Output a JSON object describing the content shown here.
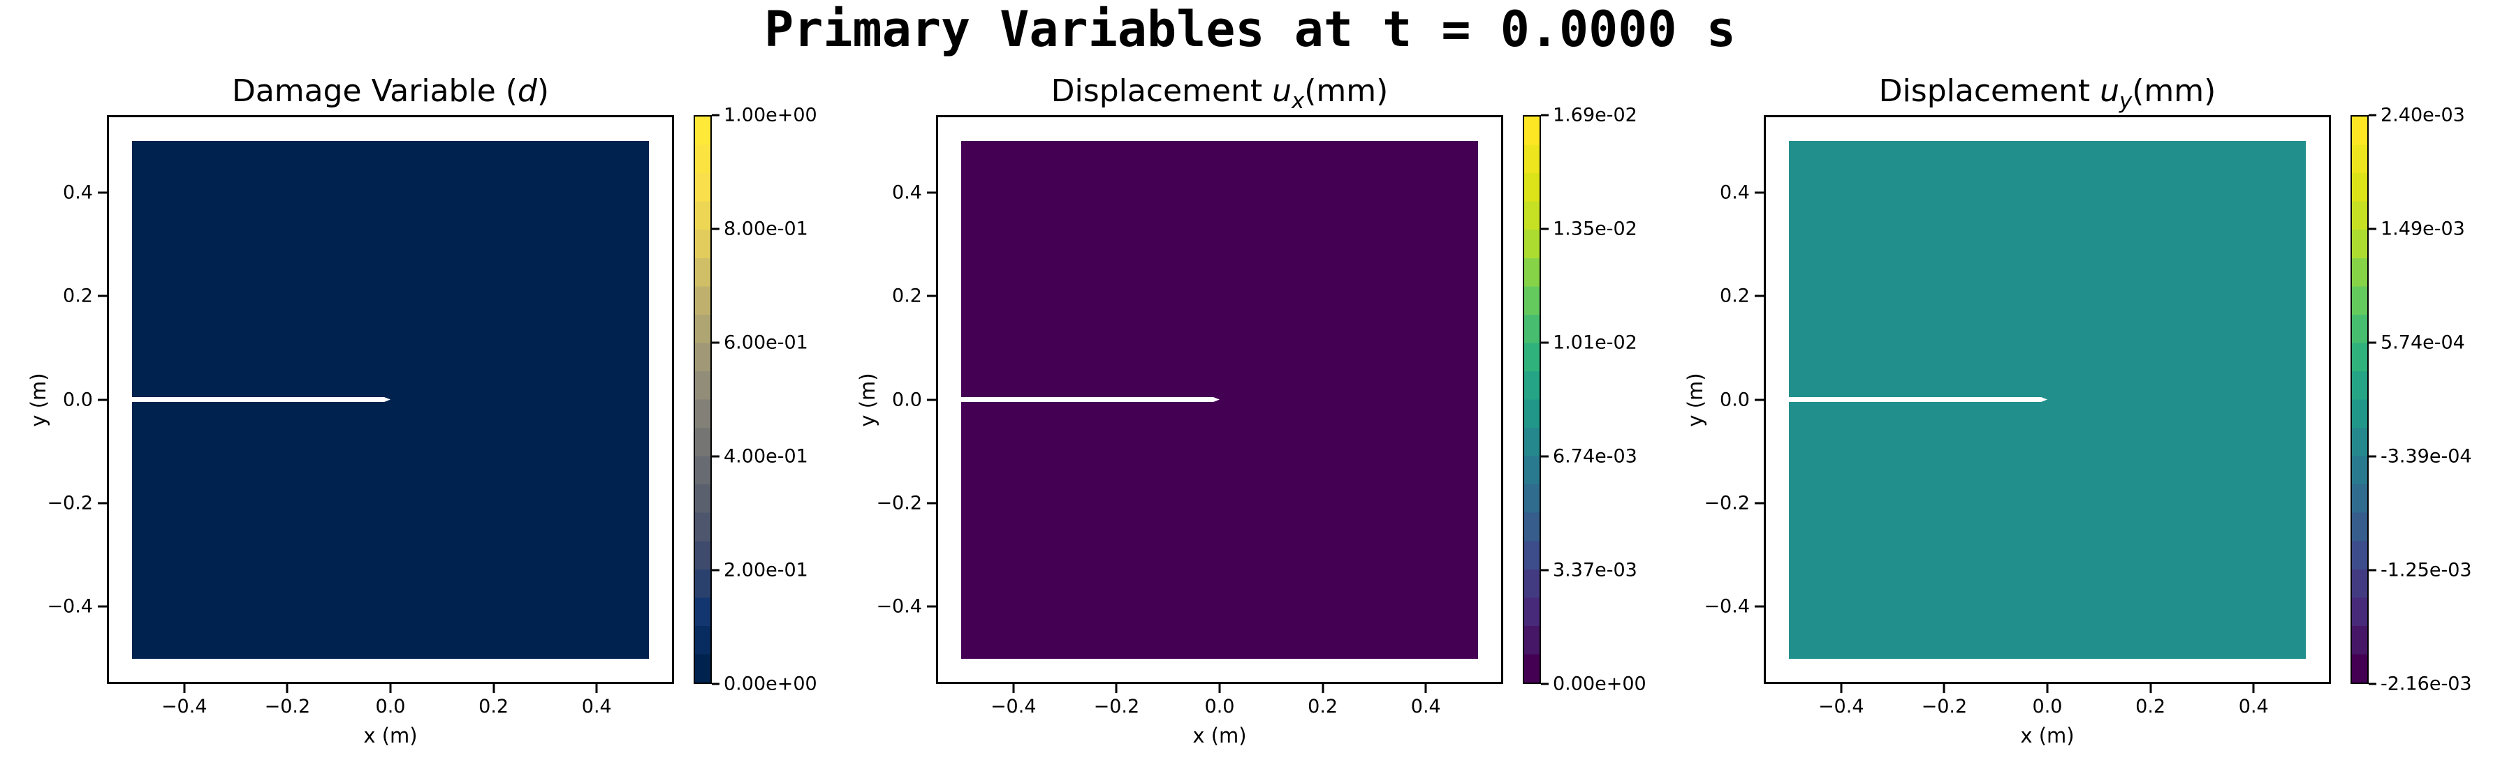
{
  "figure": {
    "suptitle": "Primary Variables at t = 0.0000 s",
    "background": "#ffffff",
    "text_color": "#000000"
  },
  "panels": [
    {
      "title_prefix": "Damage Variable (",
      "title_var": "d",
      "title_sub": "",
      "title_suffix": ")",
      "xlabel": "x (m)",
      "ylabel": "y (m)",
      "xtick_labels": [
        "−0.4",
        "−0.2",
        "0.0",
        "0.2",
        "0.4"
      ],
      "ytick_labels": [
        "0.4",
        "0.2",
        "0.0",
        "−0.2",
        "−0.4"
      ],
      "fill_color": "#00224e",
      "crack_color": "#ffffff",
      "colorbar": {
        "colormap": "cividis",
        "bands": 20,
        "stops": [
          "#00224e",
          "#123570",
          "#3b496c",
          "#575d6d",
          "#707173",
          "#8a8779",
          "#a69d75",
          "#c4b56c",
          "#e4cf5b",
          "#f9e04a",
          "#fee838"
        ],
        "tick_labels": [
          "1.00e+00",
          "8.00e-01",
          "6.00e-01",
          "4.00e-01",
          "2.00e-01",
          "0.00e+00"
        ]
      }
    },
    {
      "title_prefix": "Displacement ",
      "title_var": "u",
      "title_sub": "x",
      "title_suffix": "(mm)",
      "xlabel": "x (m)",
      "ylabel": "y (m)",
      "xtick_labels": [
        "−0.4",
        "−0.2",
        "0.0",
        "0.2",
        "0.4"
      ],
      "ytick_labels": [
        "0.4",
        "0.2",
        "0.0",
        "−0.2",
        "−0.4"
      ],
      "fill_color": "#440154",
      "crack_color": "#ffffff",
      "colorbar": {
        "colormap": "viridis",
        "bands": 20,
        "stops": [
          "#440154",
          "#482878",
          "#3e4989",
          "#31688e",
          "#26828e",
          "#1f9e89",
          "#35b779",
          "#6dcd59",
          "#b4de2c",
          "#dfe318",
          "#fde725"
        ],
        "tick_labels": [
          "1.69e-02",
          "1.35e-02",
          "1.01e-02",
          "6.74e-03",
          "3.37e-03",
          "0.00e+00"
        ]
      }
    },
    {
      "title_prefix": "Displacement ",
      "title_var": "u",
      "title_sub": "y",
      "title_suffix": "(mm)",
      "xlabel": "x (m)",
      "ylabel": "y (m)",
      "xtick_labels": [
        "−0.4",
        "−0.2",
        "0.0",
        "0.2",
        "0.4"
      ],
      "ytick_labels": [
        "0.4",
        "0.2",
        "0.0",
        "−0.2",
        "−0.4"
      ],
      "fill_color": "#21908c",
      "crack_color": "#ffffff",
      "colorbar": {
        "colormap": "viridis",
        "bands": 20,
        "stops": [
          "#440154",
          "#482878",
          "#3e4989",
          "#31688e",
          "#26828e",
          "#1f9e89",
          "#35b779",
          "#6dcd59",
          "#b4de2c",
          "#dfe318",
          "#fde725"
        ],
        "tick_labels": [
          "2.40e-03",
          "1.49e-03",
          "5.74e-04",
          "-3.39e-04",
          "-1.25e-03",
          "-2.16e-03"
        ]
      }
    }
  ],
  "chart_data": [
    {
      "type": "heatmap",
      "title": "Damage Variable (d)",
      "xlabel": "x (m)",
      "ylabel": "y (m)",
      "x_range": [
        -0.5,
        0.5
      ],
      "y_range": [
        -0.5,
        0.5
      ],
      "axes_xlim": [
        -0.55,
        0.55
      ],
      "axes_ylim": [
        -0.55,
        0.55
      ],
      "xticks": [
        -0.4,
        -0.2,
        0.0,
        0.2,
        0.4
      ],
      "yticks": [
        -0.4,
        -0.2,
        0.0,
        0.2,
        0.4
      ],
      "field": "d",
      "field_value_uniform": 0.0,
      "colormap": "cividis",
      "clim": [
        0.0,
        1.0
      ],
      "colorbar_ticks": [
        0.0,
        0.2,
        0.4,
        0.6,
        0.8,
        1.0
      ],
      "crack": {
        "y": 0.0,
        "x_from": -0.5,
        "x_to": 0.0,
        "color": "white"
      }
    },
    {
      "type": "heatmap",
      "title": "Displacement u_x (mm)",
      "xlabel": "x (m)",
      "ylabel": "y (m)",
      "x_range": [
        -0.5,
        0.5
      ],
      "y_range": [
        -0.5,
        0.5
      ],
      "axes_xlim": [
        -0.55,
        0.55
      ],
      "axes_ylim": [
        -0.55,
        0.55
      ],
      "xticks": [
        -0.4,
        -0.2,
        0.0,
        0.2,
        0.4
      ],
      "yticks": [
        -0.4,
        -0.2,
        0.0,
        0.2,
        0.4
      ],
      "field": "u_x",
      "field_value_uniform": 0.0,
      "colormap": "viridis",
      "clim": [
        0.0,
        0.0169
      ],
      "colorbar_ticks": [
        0.0,
        0.00337,
        0.00674,
        0.0101,
        0.0135,
        0.0169
      ],
      "crack": {
        "y": 0.0,
        "x_from": -0.5,
        "x_to": 0.0,
        "color": "white"
      }
    },
    {
      "type": "heatmap",
      "title": "Displacement u_y (mm)",
      "xlabel": "x (m)",
      "ylabel": "y (m)",
      "x_range": [
        -0.5,
        0.5
      ],
      "y_range": [
        -0.5,
        0.5
      ],
      "axes_xlim": [
        -0.55,
        0.55
      ],
      "axes_ylim": [
        -0.55,
        0.55
      ],
      "xticks": [
        -0.4,
        -0.2,
        0.0,
        0.2,
        0.4
      ],
      "yticks": [
        -0.4,
        -0.2,
        0.0,
        0.2,
        0.4
      ],
      "field": "u_y",
      "field_value_uniform": 0.0,
      "colormap": "viridis",
      "clim": [
        -0.00216,
        0.0024
      ],
      "colorbar_ticks": [
        -0.00216,
        -0.00125,
        -0.000339,
        0.000574,
        0.00149,
        0.0024
      ],
      "crack": {
        "y": 0.0,
        "x_from": -0.5,
        "x_to": 0.0,
        "color": "white"
      }
    }
  ]
}
